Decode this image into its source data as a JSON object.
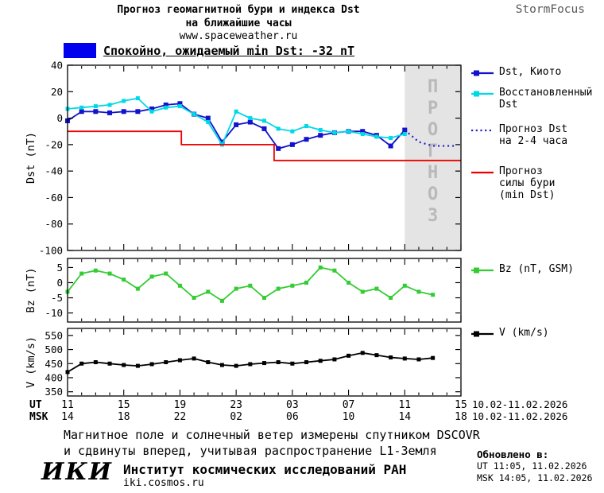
{
  "header": {
    "title_line1": "Прогноз геомагнитной бури и индекса Dst",
    "title_line2": "на ближайшие часы",
    "website": "www.spaceweather.ru",
    "brand": "StormFocus"
  },
  "status_banner": {
    "label": "Спокойно, ожидаемый min Dst: -32 nT",
    "color": "#0000ee"
  },
  "legend": {
    "dst_kyoto": "Dst, Киото",
    "restored_line1": "Восстановленный",
    "restored_line2": "Dst",
    "forecast_line1": "Прогноз Dst",
    "forecast_line2": "на 2-4 часа",
    "storm_line1": "Прогноз",
    "storm_line2": "силы бури",
    "storm_line3": "(min Dst)",
    "bz": "Bz (nT, GSM)",
    "v": "V (km/s)"
  },
  "chart_data": {
    "type": "line",
    "title": "Прогноз геомагнитной бури и индекса Dst на ближайшие часы",
    "x_axis_note": "hours from 10.02.2026 11:00 UT to 11.02.2026 15:00 UT",
    "xlim": [
      0,
      28
    ],
    "xaxis": {
      "tick_hours": [
        0,
        4,
        8,
        12,
        16,
        20,
        24,
        28
      ],
      "ut_label": "UT",
      "msk_label": "MSK",
      "ut_ticks": [
        "11",
        "15",
        "19",
        "23",
        "03",
        "07",
        "11",
        "15"
      ],
      "msk_ticks": [
        "14",
        "18",
        "22",
        "02",
        "06",
        "10",
        "14",
        "18"
      ],
      "date_range": "10.02-11.02.2026"
    },
    "panels": [
      {
        "id": "dst",
        "ylabel": "Dst (nT)",
        "ylim": [
          -100,
          40
        ],
        "yticks": [
          40,
          20,
          0,
          -20,
          -40,
          -60,
          -80,
          -100
        ],
        "forecast_region": {
          "x_start": 24,
          "x_end": 28,
          "label": "ПРОГНОЗ",
          "fill": "#e4e4e4",
          "text_color": "#b9b9b9"
        },
        "series": [
          {
            "name": "Dst, Киото",
            "color": "#1212cc",
            "marker": "square",
            "msize": 6,
            "style": "solid",
            "x": [
              0,
              1,
              2,
              3,
              4,
              5,
              6,
              7,
              8,
              9,
              10,
              11,
              12,
              13,
              14,
              15,
              16,
              17,
              18,
              19,
              20,
              21,
              22,
              23,
              24
            ],
            "y": [
              -2,
              5,
              5,
              4,
              5,
              5,
              7,
              10,
              11,
              3,
              0,
              -18,
              -5,
              -3,
              -8,
              -23,
              -20,
              -16,
              -13,
              -11,
              -10,
              -10,
              -13,
              -21,
              -9
            ]
          },
          {
            "name": "Восстановленный Dst",
            "color": "#00d8e6",
            "marker": "square",
            "msize": 5,
            "style": "solid",
            "x": [
              0,
              1,
              2,
              3,
              4,
              5,
              6,
              7,
              8,
              9,
              10,
              11,
              12,
              13,
              14,
              15,
              16,
              17,
              18,
              19,
              20,
              21,
              22,
              23,
              24
            ],
            "y": [
              7,
              8,
              9,
              10,
              13,
              15,
              5,
              8,
              9,
              3,
              -3,
              -20,
              5,
              0,
              -2,
              -8,
              -10,
              -6,
              -9,
              -11,
              -10,
              -12,
              -14,
              -15,
              -12
            ]
          },
          {
            "name": "Прогноз Dst на 2-4 часа",
            "color": "#2222cc",
            "marker": "none",
            "style": "dotted",
            "x": [
              24,
              25,
              26,
              27.5
            ],
            "y": [
              -9,
              -18,
              -21,
              -21
            ]
          },
          {
            "name": "Прогноз силы бури (min Dst)",
            "color": "#ee0000",
            "marker": "none",
            "style": "solid",
            "x": [
              0,
              8.1,
              8.1,
              14.7,
              14.7,
              28
            ],
            "y": [
              -10,
              -10,
              -20,
              -20,
              -32,
              -32
            ]
          }
        ]
      },
      {
        "id": "bz",
        "ylabel": "Bz (nT)",
        "ylim": [
          -13,
          8
        ],
        "yticks": [
          5,
          0,
          -5,
          -10
        ],
        "series": [
          {
            "name": "Bz (nT, GSM)",
            "color": "#33cc33",
            "marker": "square",
            "msize": 5,
            "style": "solid",
            "x": [
              0,
              1,
              2,
              3,
              4,
              5,
              6,
              7,
              8,
              9,
              10,
              11,
              12,
              13,
              14,
              15,
              16,
              17,
              18,
              19,
              20,
              21,
              22,
              23,
              24,
              25,
              26
            ],
            "y": [
              -3,
              3,
              4,
              3,
              1,
              -2,
              2,
              3,
              -1,
              -5,
              -3,
              -6,
              -2,
              -1,
              -5,
              -2,
              -1,
              0,
              5,
              4,
              0,
              -3,
              -2,
              -5,
              -1,
              -3,
              -4
            ]
          }
        ]
      },
      {
        "id": "v",
        "ylabel": "V (km/s)",
        "ylim": [
          335,
          575
        ],
        "yticks": [
          550,
          500,
          450,
          400,
          350
        ],
        "series": [
          {
            "name": "V (km/s)",
            "color": "#000000",
            "marker": "square",
            "msize": 5,
            "style": "solid",
            "x": [
              0,
              1,
              2,
              3,
              4,
              5,
              6,
              7,
              8,
              9,
              10,
              11,
              12,
              13,
              14,
              15,
              16,
              17,
              18,
              19,
              20,
              21,
              22,
              23,
              24,
              25,
              26
            ],
            "y": [
              420,
              450,
              455,
              450,
              445,
              442,
              448,
              455,
              462,
              468,
              455,
              445,
              442,
              448,
              452,
              455,
              450,
              455,
              460,
              465,
              478,
              488,
              480,
              472,
              468,
              465,
              470
            ]
          }
        ]
      }
    ]
  },
  "footer": {
    "note_line1": "Магнитное поле и солнечный ветер измерены спутником DSCOVR",
    "note_line2": "и сдвинуты вперед, учитывая распространение L1-Земля",
    "updated_label": "Обновлено в:",
    "updated_ut": "UT  11:05, 11.02.2026",
    "updated_msk": "MSK 14:05, 11.02.2026",
    "logo": "ИКИ",
    "institute": "Институт космических исследований РАН",
    "site": "iki.cosmos.ru"
  }
}
